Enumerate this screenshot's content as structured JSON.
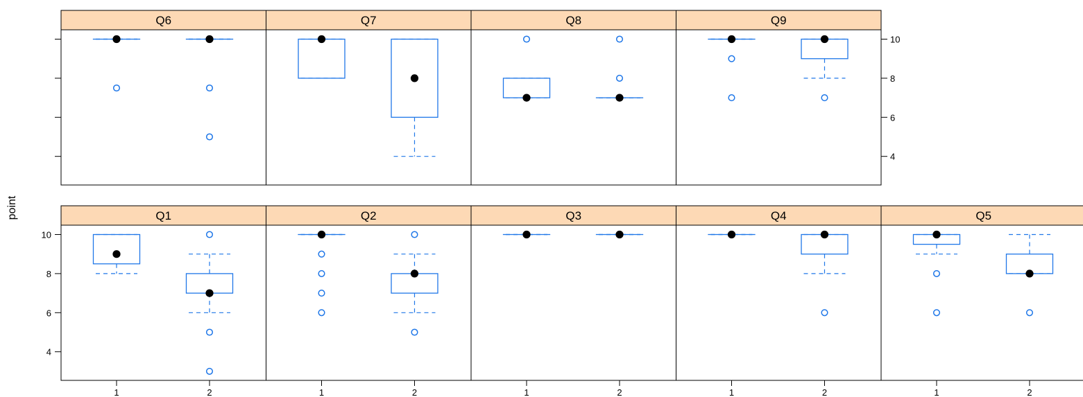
{
  "chart_data": {
    "type": "boxplot",
    "ylabel": "point",
    "categories": [
      "1",
      "2"
    ],
    "yticks": [
      4,
      6,
      8,
      10
    ],
    "ylim": [
      2.5,
      11
    ],
    "colors": {
      "box": "#1f77e8",
      "median": "#000000",
      "strip": "#fdd9b5",
      "frame": "#000000"
    },
    "panels": [
      {
        "name": "Q6",
        "groups": [
          {
            "category": "1",
            "q1": 10,
            "median": 10,
            "q3": 10,
            "whisker_low": 10,
            "whisker_high": 10,
            "outliers": [
              7.5
            ]
          },
          {
            "category": "2",
            "q1": 10,
            "median": 10,
            "q3": 10,
            "whisker_low": 10,
            "whisker_high": 10,
            "outliers": [
              7.5,
              5
            ]
          }
        ]
      },
      {
        "name": "Q7",
        "groups": [
          {
            "category": "1",
            "q1": 8,
            "median": 10,
            "q3": 10,
            "whisker_low": 8,
            "whisker_high": 10,
            "outliers": []
          },
          {
            "category": "2",
            "q1": 6,
            "median": 8,
            "q3": 10,
            "whisker_low": 4,
            "whisker_high": 10,
            "outliers": []
          }
        ]
      },
      {
        "name": "Q8",
        "groups": [
          {
            "category": "1",
            "q1": 7,
            "median": 7,
            "q3": 8,
            "whisker_low": 7,
            "whisker_high": 8,
            "outliers": [
              10
            ]
          },
          {
            "category": "2",
            "q1": 7,
            "median": 7,
            "q3": 7,
            "whisker_low": 7,
            "whisker_high": 7,
            "outliers": [
              10,
              8
            ]
          }
        ]
      },
      {
        "name": "Q9",
        "groups": [
          {
            "category": "1",
            "q1": 10,
            "median": 10,
            "q3": 10,
            "whisker_low": 10,
            "whisker_high": 10,
            "outliers": [
              9,
              7
            ]
          },
          {
            "category": "2",
            "q1": 9,
            "median": 10,
            "q3": 10,
            "whisker_low": 8,
            "whisker_high": 10,
            "outliers": [
              7
            ]
          }
        ]
      },
      {
        "name": "Q1",
        "groups": [
          {
            "category": "1",
            "q1": 8.5,
            "median": 9,
            "q3": 10,
            "whisker_low": 8,
            "whisker_high": 10,
            "outliers": []
          },
          {
            "category": "2",
            "q1": 7,
            "median": 7,
            "q3": 8,
            "whisker_low": 6,
            "whisker_high": 9,
            "outliers": [
              10,
              5,
              3
            ]
          }
        ]
      },
      {
        "name": "Q2",
        "groups": [
          {
            "category": "1",
            "q1": 10,
            "median": 10,
            "q3": 10,
            "whisker_low": 10,
            "whisker_high": 10,
            "outliers": [
              9,
              8,
              7,
              6
            ]
          },
          {
            "category": "2",
            "q1": 7,
            "median": 8,
            "q3": 8,
            "whisker_low": 6,
            "whisker_high": 9,
            "outliers": [
              10,
              5
            ]
          }
        ]
      },
      {
        "name": "Q3",
        "groups": [
          {
            "category": "1",
            "q1": 10,
            "median": 10,
            "q3": 10,
            "whisker_low": 10,
            "whisker_high": 10,
            "outliers": []
          },
          {
            "category": "2",
            "q1": 10,
            "median": 10,
            "q3": 10,
            "whisker_low": 10,
            "whisker_high": 10,
            "outliers": []
          }
        ]
      },
      {
        "name": "Q4",
        "groups": [
          {
            "category": "1",
            "q1": 10,
            "median": 10,
            "q3": 10,
            "whisker_low": 10,
            "whisker_high": 10,
            "outliers": []
          },
          {
            "category": "2",
            "q1": 9,
            "median": 10,
            "q3": 10,
            "whisker_low": 8,
            "whisker_high": 10,
            "outliers": [
              6
            ]
          }
        ]
      },
      {
        "name": "Q5",
        "groups": [
          {
            "category": "1",
            "q1": 9.5,
            "median": 10,
            "q3": 10,
            "whisker_low": 9,
            "whisker_high": 10,
            "outliers": [
              8,
              6
            ]
          },
          {
            "category": "2",
            "q1": 8,
            "median": 8,
            "q3": 9,
            "whisker_low": 8,
            "whisker_high": 10,
            "outliers": [
              6
            ]
          }
        ]
      }
    ]
  }
}
